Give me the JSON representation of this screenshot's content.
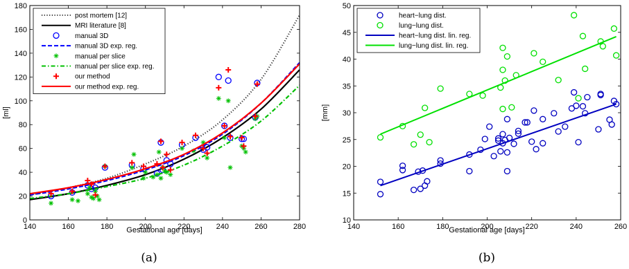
{
  "chart_data": [
    {
      "type": "line",
      "caption": "(a)",
      "xlabel": "Gestational age [days]",
      "ylabel": "[ml]",
      "xlim": [
        140,
        280
      ],
      "ylim": [
        0,
        180
      ],
      "xticks": [
        140,
        160,
        180,
        200,
        220,
        240,
        260,
        280
      ],
      "yticks": [
        0,
        20,
        40,
        60,
        80,
        100,
        120,
        140,
        160,
        180
      ],
      "legend": "top-left",
      "series": [
        {
          "name": "post mortem [12]",
          "style": "dotted",
          "color": "#333333",
          "x": [
            140,
            160,
            180,
            200,
            220,
            240,
            260,
            280
          ],
          "y": [
            21,
            27,
            35,
            47,
            62,
            84,
            118,
            172
          ]
        },
        {
          "name": "MRI literature [8]",
          "style": "solid-thick",
          "color": "#000000",
          "x": [
            140,
            160,
            180,
            200,
            220,
            240,
            260,
            280
          ],
          "y": [
            17,
            22,
            29,
            38,
            51,
            69,
            93,
            126
          ]
        },
        {
          "name": "manual 3D",
          "style": "circle",
          "color": "#0000ff",
          "x": [
            151,
            162,
            170,
            172,
            174,
            179,
            193,
            199,
            206,
            208,
            209,
            211,
            213,
            219,
            226,
            230,
            232,
            238,
            241,
            243,
            244,
            250,
            251,
            257,
            258
          ],
          "y": [
            20,
            23,
            29,
            26,
            27,
            44,
            46,
            43,
            39,
            65,
            42,
            50,
            47,
            63,
            69,
            59,
            61,
            120,
            79,
            117,
            69,
            68,
            68,
            86,
            115
          ]
        },
        {
          "name": "manual 3D exp. reg.",
          "style": "dashed",
          "color": "#0000ff",
          "x": [
            140,
            160,
            180,
            200,
            220,
            240,
            260,
            280
          ],
          "y": [
            21,
            26,
            33,
            42,
            54,
            72,
            98,
            132
          ]
        },
        {
          "name": "manual per slice",
          "style": "star",
          "color": "#00c000",
          "x": [
            151,
            162,
            165,
            170,
            171,
            172,
            173,
            174,
            175,
            176,
            179,
            193,
            194,
            199,
            200,
            204,
            206,
            207,
            208,
            209,
            210,
            211,
            213,
            219,
            225,
            230,
            232,
            238,
            241,
            243,
            244,
            250,
            251,
            252,
            257,
            258
          ],
          "y": [
            14,
            17,
            16,
            22,
            27,
            19,
            18,
            24,
            20,
            17,
            45,
            44,
            55,
            35,
            40,
            36,
            38,
            57,
            35,
            44,
            41,
            40,
            38,
            60,
            58,
            65,
            52,
            102,
            69,
            100,
            44,
            62,
            60,
            57,
            85,
            87
          ]
        },
        {
          "name": "manual per slice exp. reg.",
          "style": "dashdot",
          "color": "#00c000",
          "x": [
            140,
            160,
            180,
            200,
            220,
            240,
            260,
            280
          ],
          "y": [
            18,
            22,
            28,
            35,
            46,
            62,
            83,
            113
          ]
        },
        {
          "name": "our method",
          "style": "plus",
          "color": "#ff0000",
          "x": [
            151,
            162,
            170,
            172,
            174,
            179,
            193,
            199,
            206,
            208,
            209,
            211,
            213,
            219,
            226,
            230,
            232,
            238,
            241,
            243,
            244,
            250,
            251,
            257,
            258
          ],
          "y": [
            22,
            24,
            33,
            30,
            21,
            45,
            48,
            45,
            47,
            66,
            44,
            55,
            42,
            65,
            71,
            60,
            56,
            111,
            79,
            126,
            70,
            69,
            62,
            87,
            114
          ]
        },
        {
          "name": "our method exp. reg.",
          "style": "solid-thick",
          "color": "#ff0000",
          "x": [
            140,
            160,
            180,
            200,
            220,
            240,
            260,
            280
          ],
          "y": [
            22,
            27,
            34,
            43,
            55,
            73,
            98,
            131
          ]
        }
      ]
    },
    {
      "type": "scatter",
      "caption": "(b)",
      "xlabel": "Gestational age [days]",
      "ylabel": "[mm]",
      "xlim": [
        140,
        260
      ],
      "ylim": [
        10,
        50
      ],
      "xticks": [
        140,
        160,
        180,
        200,
        220,
        240,
        260
      ],
      "yticks": [
        10,
        15,
        20,
        25,
        30,
        35,
        40,
        45,
        50
      ],
      "legend": "top-left",
      "series": [
        {
          "name": "heart−lung dist.",
          "style": "circle",
          "color": "#0000c0",
          "x": [
            152,
            152,
            162,
            162,
            167,
            169,
            170,
            171,
            172,
            173,
            179,
            179,
            192,
            192,
            197,
            199,
            201,
            203,
            205,
            205,
            206,
            207,
            207,
            208,
            209,
            209,
            209,
            210,
            212,
            214,
            214,
            217,
            218,
            220,
            221,
            222,
            225,
            225,
            230,
            232,
            235,
            238,
            239,
            240,
            241,
            243,
            244,
            245,
            250,
            251,
            251,
            255,
            256,
            257,
            258
          ],
          "y": [
            14.8,
            17.1,
            19.3,
            20.1,
            15.6,
            19,
            15.8,
            19.2,
            16.4,
            17.2,
            20.5,
            21.1,
            19.1,
            22.2,
            23.1,
            25.1,
            27.4,
            21.9,
            24.8,
            25.2,
            22.8,
            26,
            24.3,
            24.9,
            19.1,
            22.6,
            28.8,
            25.3,
            24.2,
            26.1,
            26.6,
            28.2,
            28.2,
            24.6,
            30.4,
            23.2,
            24.3,
            28.8,
            29.9,
            26.5,
            27.4,
            30.8,
            33.8,
            31.3,
            24.5,
            31.2,
            29.9,
            32.9,
            26.9,
            33.5,
            33.3,
            28.7,
            27.8,
            32.2,
            31.6
          ]
        },
        {
          "name": "lung−lung dist.",
          "style": "circle",
          "color": "#00e000",
          "x": [
            152,
            162,
            167,
            170,
            172,
            174,
            179,
            192,
            198,
            206,
            207,
            207,
            207,
            208,
            209,
            211,
            213,
            221,
            225,
            232,
            239,
            241,
            243,
            244,
            251,
            252,
            257,
            258
          ],
          "y": [
            25.4,
            27.5,
            24.1,
            25.9,
            30.9,
            24.5,
            34.5,
            33.5,
            33.2,
            34.7,
            42.1,
            38,
            30.7,
            36,
            40.5,
            31,
            37,
            41.1,
            39.5,
            36.1,
            48.2,
            32.7,
            44.3,
            38.2,
            43.3,
            42.4,
            45.7,
            40.7
          ]
        },
        {
          "name": "heart−lung dist. lin. reg.",
          "style": "line",
          "color": "#0000c0",
          "x": [
            152,
            258
          ],
          "y": [
            16.4,
            31.6
          ]
        },
        {
          "name": "lung−lung dist. lin. reg.",
          "style": "line",
          "color": "#00e000",
          "x": [
            152,
            258
          ],
          "y": [
            26.0,
            44.2
          ]
        }
      ]
    }
  ]
}
